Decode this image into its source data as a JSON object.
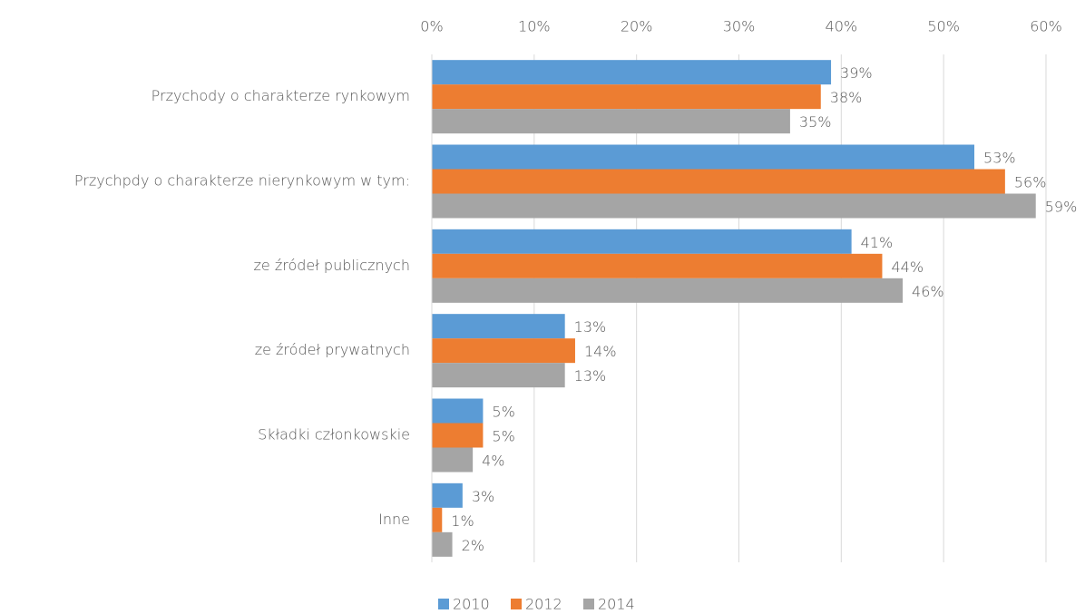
{
  "chart_data": {
    "type": "bar",
    "orientation": "horizontal",
    "categories": [
      "Przychody o charakterze rynkowym",
      "Przychpdy o charakterze nierynkowym w tym:",
      "ze źródeł publicznych",
      "ze źródeł prywatnych",
      "Składki członkowskie",
      "Inne"
    ],
    "series": [
      {
        "name": "2010",
        "color": "#5b9bd5",
        "values": [
          39,
          53,
          41,
          13,
          5,
          3
        ],
        "value_labels": [
          "39%",
          "53%",
          "41%",
          "13%",
          "5%",
          "3%"
        ]
      },
      {
        "name": "2012",
        "color": "#ed7d31",
        "values": [
          38,
          56,
          44,
          14,
          5,
          1
        ],
        "value_labels": [
          "38%",
          "56%",
          "44%",
          "14%",
          "5%",
          "1%"
        ]
      },
      {
        "name": "2014",
        "color": "#a5a5a5",
        "values": [
          35,
          59,
          46,
          13,
          4,
          2
        ],
        "value_labels": [
          "35%",
          "59%",
          "46%",
          "13%",
          "4%",
          "2%"
        ]
      }
    ],
    "xlim": [
      0,
      60
    ],
    "xticks": [
      {
        "value": 0,
        "label": "0%"
      },
      {
        "value": 10,
        "label": "10%"
      },
      {
        "value": 20,
        "label": "20%"
      },
      {
        "value": 30,
        "label": "30%"
      },
      {
        "value": 40,
        "label": "40%"
      },
      {
        "value": 50,
        "label": "50%"
      },
      {
        "value": 60,
        "label": "60%"
      }
    ],
    "grid": true,
    "legend": "bottom"
  }
}
